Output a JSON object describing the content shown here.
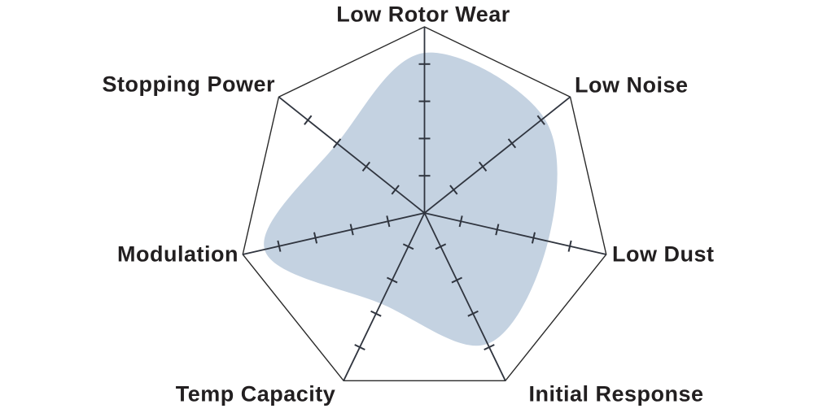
{
  "chart_data": {
    "type": "radar",
    "categories": [
      "Low Rotor Wear",
      "Low Noise",
      "Low Dust",
      "Initial Response",
      "Temp Capacity",
      "Modulation",
      "Stopping Power"
    ],
    "values": [
      4.3,
      4.1,
      3.4,
      3.9,
      2.7,
      4.4,
      3.0
    ],
    "scale": {
      "min": 0,
      "max": 5,
      "tick_interval": 1,
      "ticks_shown": [
        1,
        2,
        3,
        4
      ]
    },
    "title": "",
    "legend": "none",
    "grid": "heptagon-outline-with-axis-ticks",
    "curve": "smooth",
    "colors": {
      "fill": "#c4d2e1",
      "axis_line": "#30353f",
      "outline": "#2a2a2a",
      "label": "#221f20",
      "background": "#ffffff"
    }
  }
}
